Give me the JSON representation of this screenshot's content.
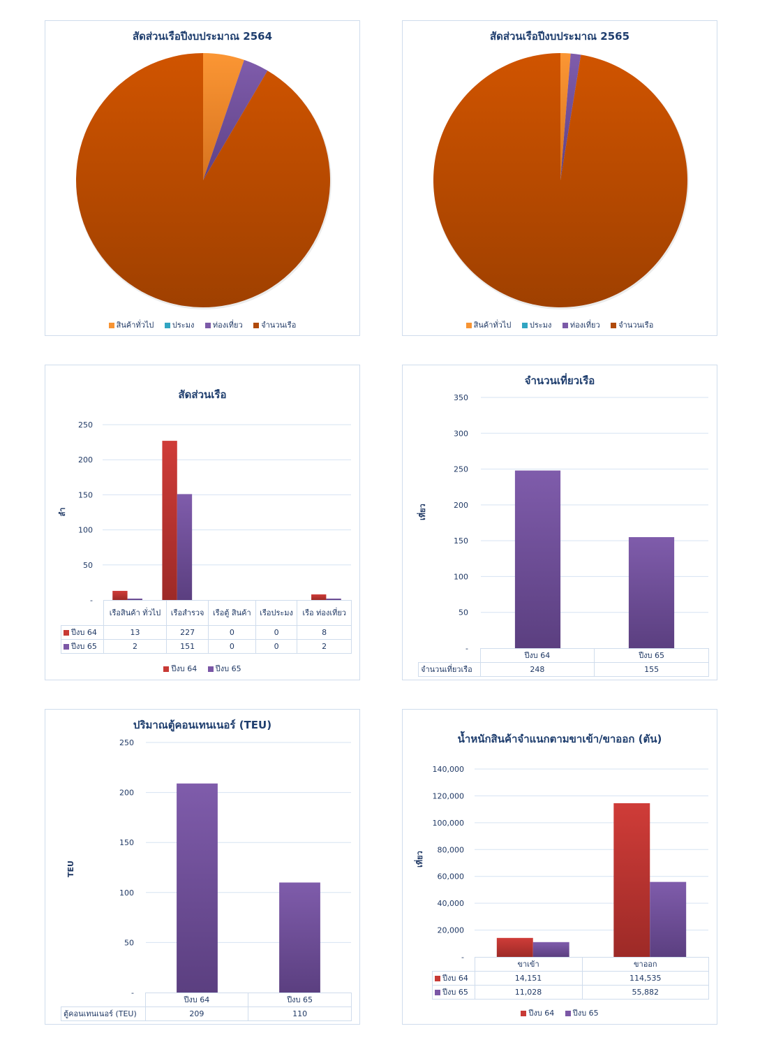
{
  "colors": {
    "general_cargo": "#f79433",
    "fishing": "#31a5c2",
    "tourism": "#7c5aa8",
    "boat_count": "#c55108",
    "fy64": "#c83a35",
    "fy65": "#7b57a6",
    "grid": "#d6e3f2",
    "text": "#1f3864"
  },
  "chart_data": [
    {
      "id": "pie2564",
      "type": "pie",
      "title": "สัดส่วนเรือปีงบประมาณ 2564",
      "categories": [
        "สินค้าทั่วไป",
        "ประมง",
        "ท่องเที่ยว",
        "จำนวนเรือ"
      ],
      "values": [
        13,
        0,
        8,
        227
      ],
      "legend": "bottom"
    },
    {
      "id": "pie2565",
      "type": "pie",
      "title": "สัดส่วนเรือปีงบประมาณ 2565",
      "categories": [
        "สินค้าทั่วไป",
        "ประมง",
        "ท่องเที่ยว",
        "จำนวนเรือ"
      ],
      "values": [
        2,
        0,
        2,
        151
      ],
      "legend": "bottom"
    },
    {
      "id": "vessel_ratio",
      "type": "bar",
      "title": "สัดส่วนเรือ",
      "ylabel": "ลำ",
      "xlabel": "",
      "ylim": [
        0,
        250
      ],
      "yticks": [
        "-",
        "50",
        "100",
        "150",
        "200",
        "250"
      ],
      "categories": [
        "เรือสินค้า\nทั่วไป",
        "เรือสำรวจ",
        "เรือตู้\nสินค้า",
        "เรือประมง",
        "เรือ\nท่องเที่ยว"
      ],
      "series": [
        {
          "name": "ปีงบ 64",
          "values": [
            13,
            227,
            0,
            0,
            8
          ]
        },
        {
          "name": "ปีงบ 65",
          "values": [
            2,
            151,
            0,
            0,
            2
          ]
        }
      ],
      "grid": true,
      "legend": "bottom",
      "data_table": true
    },
    {
      "id": "trips",
      "type": "bar",
      "title": "จำนวนเที่ยวเรือ",
      "ylabel": "เที่ยว",
      "xlabel": "",
      "ylim": [
        0,
        350
      ],
      "yticks": [
        "-",
        "50",
        "100",
        "150",
        "200",
        "250",
        "300",
        "350"
      ],
      "categories": [
        "ปีงบ 64",
        "ปีงบ 65"
      ],
      "series": [
        {
          "name": "จำนวนเที่ยวเรือ",
          "values": [
            248,
            155
          ]
        }
      ],
      "grid": true,
      "data_table": true
    },
    {
      "id": "teu",
      "type": "bar",
      "title": "ปริมาณตู้คอนเทนเนอร์ (TEU)",
      "ylabel": "TEU",
      "xlabel": "",
      "ylim": [
        0,
        250
      ],
      "yticks": [
        "-",
        "50",
        "100",
        "150",
        "200",
        "250"
      ],
      "categories": [
        "ปีงบ 64",
        "ปีงบ 65"
      ],
      "series": [
        {
          "name": "ตู้คอนเทนเนอร์ (TEU)",
          "values": [
            209,
            110
          ]
        }
      ],
      "grid": true,
      "data_table": true
    },
    {
      "id": "cargo_weight",
      "type": "bar",
      "title": "น้ำหนักสินค้าจำแนกตามขาเข้า/ขาออก (ตัน)",
      "ylabel": "เที่ยว",
      "xlabel": "",
      "ylim": [
        0,
        140000
      ],
      "yticks": [
        "-",
        "20,000",
        "40,000",
        "60,000",
        "80,000",
        "100,000",
        "120,000",
        "140,000"
      ],
      "categories": [
        "ขาเข้า",
        "ขาออก"
      ],
      "series": [
        {
          "name": "ปีงบ 64",
          "values": [
            14151,
            114535
          ],
          "labels": [
            "14,151",
            "114,535"
          ]
        },
        {
          "name": "ปีงบ 65",
          "values": [
            11028,
            55882
          ],
          "labels": [
            "11,028",
            "55,882"
          ]
        }
      ],
      "grid": true,
      "legend": "bottom",
      "data_table": true
    }
  ],
  "tables": {
    "vessel_ratio": {
      "headers": [
        "เรือสินค้า ทั่วไป",
        "เรือสำรวจ",
        "เรือตู้ สินค้า",
        "เรือประมง",
        "เรือ ท่องเที่ยว"
      ],
      "rows": [
        {
          "label": "ปีงบ 64",
          "cells": [
            "13",
            "227",
            "0",
            "0",
            "8"
          ]
        },
        {
          "label": "ปีงบ 65",
          "cells": [
            "2",
            "151",
            "0",
            "0",
            "2"
          ]
        }
      ]
    },
    "trips": {
      "headers": [
        "ปีงบ 64",
        "ปีงบ 65"
      ],
      "rows": [
        {
          "label": "จำนวนเที่ยวเรือ",
          "cells": [
            "248",
            "155"
          ]
        }
      ]
    },
    "teu": {
      "headers": [
        "ปีงบ 64",
        "ปีงบ 65"
      ],
      "rows": [
        {
          "label": "ตู้คอนเทนเนอร์ (TEU)",
          "cells": [
            "209",
            "110"
          ]
        }
      ]
    },
    "cargo_weight": {
      "headers": [
        "ขาเข้า",
        "ขาออก"
      ],
      "rows": [
        {
          "label": "ปีงบ 64",
          "cells": [
            "14,151",
            "114,535"
          ]
        },
        {
          "label": "ปีงบ 65",
          "cells": [
            "11,028",
            "55,882"
          ]
        }
      ]
    }
  },
  "legends": {
    "pie": [
      "สินค้าทั่วไป",
      "ประมง",
      "ท่องเที่ยว",
      "จำนวนเรือ"
    ],
    "years": [
      "ปีงบ 64",
      "ปีงบ 65"
    ]
  }
}
